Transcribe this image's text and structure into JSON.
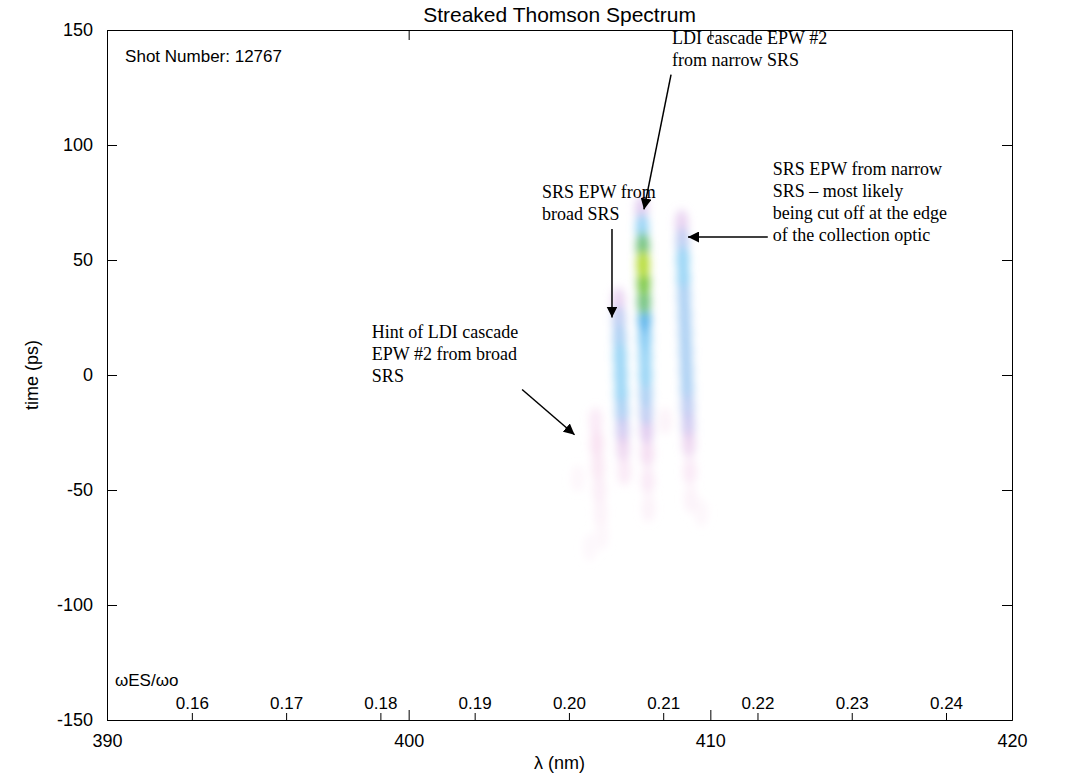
{
  "chart_data": {
    "type": "heatmap",
    "title": "Streaked Thomson Spectrum",
    "x_label": "λ (nm)",
    "y_label": "time (ps)",
    "x2_label": "ωES/ωo",
    "xlim": [
      390,
      420
    ],
    "xticks": [
      390,
      400,
      410,
      420
    ],
    "ylim": [
      -150,
      150
    ],
    "yticks": [
      -150,
      -100,
      -50,
      0,
      50,
      100,
      150
    ],
    "x2lim": [
      0.151,
      0.247
    ],
    "x2ticks": [
      0.16,
      0.17,
      0.18,
      0.19,
      {
        "value": 0.2,
        "label": "0.20"
      },
      0.21,
      0.22,
      0.23,
      0.24
    ],
    "cells": [
      {
        "x": 405.6,
        "y": -45,
        "value": 0.06
      },
      {
        "x": 406.0,
        "y": -75,
        "value": 0.05
      },
      {
        "x": 408.5,
        "y": -20,
        "value": 0.08
      },
      {
        "x": 409.7,
        "y": -60,
        "value": 0.06
      },
      {
        "x": 406.2,
        "y": -20,
        "value": 0.12
      },
      {
        "x": 406.24,
        "y": -30,
        "value": 0.15
      },
      {
        "x": 406.28,
        "y": -40,
        "value": 0.13
      },
      {
        "x": 406.32,
        "y": -50,
        "value": 0.1
      },
      {
        "x": 406.36,
        "y": -60,
        "value": 0.08
      },
      {
        "x": 406.4,
        "y": -70,
        "value": 0.06
      },
      {
        "x": 406.95,
        "y": 32,
        "value": 0.3
      },
      {
        "x": 406.97,
        "y": 24,
        "value": 0.45
      },
      {
        "x": 406.99,
        "y": 16,
        "value": 0.5
      },
      {
        "x": 407.01,
        "y": 8,
        "value": 0.55
      },
      {
        "x": 407.03,
        "y": 0,
        "value": 0.55
      },
      {
        "x": 407.05,
        "y": -8,
        "value": 0.55
      },
      {
        "x": 407.07,
        "y": -16,
        "value": 0.5
      },
      {
        "x": 407.09,
        "y": -24,
        "value": 0.4
      },
      {
        "x": 407.11,
        "y": -32,
        "value": 0.25
      },
      {
        "x": 407.15,
        "y": -42,
        "value": 0.12
      },
      {
        "x": 409.05,
        "y": 66,
        "value": 0.3
      },
      {
        "x": 409.07,
        "y": 58,
        "value": 0.45
      },
      {
        "x": 409.09,
        "y": 50,
        "value": 0.55
      },
      {
        "x": 409.11,
        "y": 42,
        "value": 0.55
      },
      {
        "x": 409.13,
        "y": 34,
        "value": 0.5
      },
      {
        "x": 409.15,
        "y": 26,
        "value": 0.5
      },
      {
        "x": 409.17,
        "y": 18,
        "value": 0.5
      },
      {
        "x": 409.19,
        "y": 10,
        "value": 0.5
      },
      {
        "x": 409.21,
        "y": 2,
        "value": 0.5
      },
      {
        "x": 409.23,
        "y": -6,
        "value": 0.5
      },
      {
        "x": 409.25,
        "y": -14,
        "value": 0.45
      },
      {
        "x": 409.27,
        "y": -22,
        "value": 0.4
      },
      {
        "x": 409.29,
        "y": -30,
        "value": 0.25
      },
      {
        "x": 409.32,
        "y": -42,
        "value": 0.12
      },
      {
        "x": 409.35,
        "y": -54,
        "value": 0.08
      },
      {
        "x": 407.95,
        "y": -58,
        "value": 0.08
      },
      {
        "x": 407.93,
        "y": -46,
        "value": 0.12
      },
      {
        "x": 407.91,
        "y": -34,
        "value": 0.2
      },
      {
        "x": 407.89,
        "y": -24,
        "value": 0.35
      },
      {
        "x": 407.87,
        "y": -16,
        "value": 0.45
      },
      {
        "x": 407.86,
        "y": -8,
        "value": 0.5
      },
      {
        "x": 407.85,
        "y": 0,
        "value": 0.55
      },
      {
        "x": 407.84,
        "y": 8,
        "value": 0.55
      },
      {
        "x": 407.83,
        "y": 16,
        "value": 0.6
      },
      {
        "x": 407.72,
        "y": 72,
        "value": 0.35
      },
      {
        "x": 407.74,
        "y": 64,
        "value": 0.55
      },
      {
        "x": 407.82,
        "y": 24,
        "value": 0.75
      },
      {
        "x": 407.8,
        "y": 32,
        "value": 0.85
      },
      {
        "x": 407.76,
        "y": 56,
        "value": 0.85
      },
      {
        "x": 407.79,
        "y": 40,
        "value": 0.9
      },
      {
        "x": 407.77,
        "y": 48,
        "value": 0.95
      }
    ],
    "annotations": [
      {
        "lines": [
          "Shot Number: 12767"
        ],
        "xytext": [
          390.6,
          136
        ]
      },
      {
        "lines": [
          "LDI cascade EPW #2",
          "from narrow SRS"
        ],
        "xytext": [
          408.73,
          144
        ],
        "xy": [
          407.8,
          72
        ]
      },
      {
        "lines": [
          "SRS EPW from narrow",
          "SRS – most likely",
          "being cut off at the edge",
          "of the collection optic"
        ],
        "xytext": [
          412.07,
          87
        ],
        "xy": [
          409.26,
          60
        ]
      },
      {
        "lines": [
          "SRS EPW from",
          "broad SRS"
        ],
        "xytext": [
          404.42,
          77
        ],
        "xy": [
          406.74,
          25
        ]
      },
      {
        "lines": [
          "Hint of LDI cascade",
          "EPW #2 from broad",
          "SRS"
        ],
        "xytext": [
          398.78,
          16
        ],
        "xy": [
          405.5,
          -26
        ]
      }
    ]
  }
}
